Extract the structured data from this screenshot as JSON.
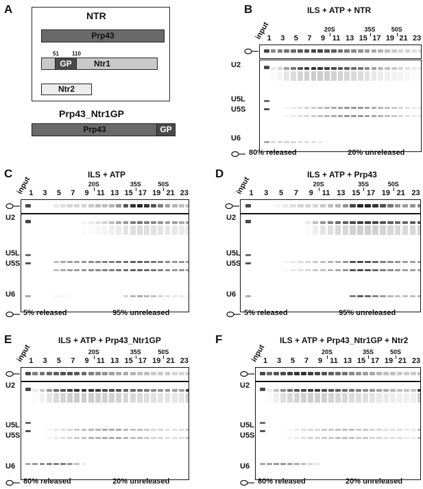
{
  "panels": {
    "A": {
      "letter": "A",
      "box_title": "NTR",
      "prp43": "Prp43",
      "gp": "GP",
      "ntr1": "Ntr1",
      "pos51": "51",
      "pos110": "110",
      "ntr2": "Ntr2",
      "fusion_title": "Prp43_Ntr1GP",
      "fusion_prp43": "Prp43",
      "fusion_gp": "GP"
    },
    "B": {
      "letter": "B",
      "title": "ILS + ATP + NTR",
      "released": "80% released",
      "unreleased": "20% unreleased"
    },
    "C": {
      "letter": "C",
      "title": "ILS + ATP",
      "released": "5% released",
      "unreleased": "95% unreleased"
    },
    "D": {
      "letter": "D",
      "title": "ILS + ATP + Prp43",
      "released": "5% released",
      "unreleased": "95% unreleased"
    },
    "E": {
      "letter": "E",
      "title": "ILS + ATP + Prp43_Ntr1GP",
      "released": "80% released",
      "unreleased": "20% unreleased"
    },
    "F": {
      "letter": "F",
      "title": "ILS + ATP + Prp43_Ntr1GP + Ntr2",
      "released": "80% released",
      "unreleased": "20% unreleased"
    }
  },
  "gel_labels": {
    "input": "input",
    "lanes": [
      "1",
      "3",
      "5",
      "7",
      "9",
      "11",
      "13",
      "15",
      "17",
      "19",
      "21",
      "23"
    ],
    "markers": [
      "20S",
      "35S",
      "50S"
    ],
    "rnas": [
      "U2",
      "U5L",
      "U5S",
      "U6"
    ]
  },
  "band_levels": {
    "B": {
      "top": [
        0.55,
        0.6,
        0.65,
        0.7,
        0.75,
        0.8,
        0.85,
        0.85,
        0.8,
        0.75,
        0.65,
        0.6,
        0.55,
        0.5,
        0.45,
        0.4,
        0.35,
        0.3,
        0.25,
        0.2,
        0.2,
        0.15,
        0.15
      ],
      "u2": [
        0.1,
        0.2,
        0.45,
        0.65,
        0.8,
        0.9,
        0.95,
        0.95,
        0.9,
        0.85,
        0.8,
        0.75,
        0.7,
        0.65,
        0.55,
        0.45,
        0.35,
        0.3,
        0.25,
        0.2,
        0.15,
        0.1,
        0.1
      ],
      "u5": [
        0.0,
        0.0,
        0.05,
        0.1,
        0.15,
        0.2,
        0.25,
        0.3,
        0.35,
        0.4,
        0.45,
        0.5,
        0.5,
        0.5,
        0.45,
        0.4,
        0.35,
        0.3,
        0.25,
        0.2,
        0.15,
        0.1,
        0.1
      ],
      "u6": [
        0.2,
        0.2,
        0.2,
        0.2,
        0.15,
        0.15,
        0.15,
        0.1,
        0,
        0,
        0,
        0,
        0,
        0,
        0,
        0,
        0,
        0,
        0,
        0,
        0,
        0,
        0
      ]
    },
    "C": {
      "top": [
        0,
        0,
        0,
        0.1,
        0.15,
        0.2,
        0.2,
        0.2,
        0.25,
        0.3,
        0.3,
        0.35,
        0.5,
        0.8,
        0.95,
        1.0,
        0.95,
        0.8,
        0.6,
        0.45,
        0.35,
        0.3,
        0.3
      ],
      "u2": [
        0,
        0,
        0,
        0,
        0,
        0,
        0,
        0.05,
        0.1,
        0.15,
        0.2,
        0.3,
        0.4,
        0.5,
        0.6,
        0.65,
        0.6,
        0.55,
        0.5,
        0.45,
        0.45,
        0.4,
        0.45
      ],
      "u5": [
        0,
        0,
        0,
        0.3,
        0.4,
        0.45,
        0.45,
        0.5,
        0.55,
        0.55,
        0.6,
        0.6,
        0.65,
        0.7,
        0.75,
        0.75,
        0.7,
        0.65,
        0.6,
        0.55,
        0.5,
        0.5,
        0.45
      ],
      "u6": [
        0,
        0,
        0,
        0.05,
        0.05,
        0,
        0,
        0,
        0,
        0,
        0,
        0,
        0,
        0.2,
        0.35,
        0.4,
        0.35,
        0.3,
        0.2,
        0.15,
        0.1,
        0.1,
        0.1
      ]
    },
    "D": {
      "top": [
        0,
        0,
        0,
        0.05,
        0.1,
        0.15,
        0.2,
        0.2,
        0.2,
        0.25,
        0.3,
        0.35,
        0.5,
        0.85,
        1.0,
        1.0,
        0.95,
        0.8,
        0.65,
        0.5,
        0.45,
        0.5,
        0.55
      ],
      "u2": [
        0,
        0,
        0,
        0,
        0,
        0,
        0,
        0.1,
        0.3,
        0.5,
        0.6,
        0.7,
        0.75,
        0.85,
        0.9,
        0.9,
        0.85,
        0.8,
        0.75,
        0.7,
        0.7,
        0.75,
        0.8
      ],
      "u5": [
        0,
        0,
        0,
        0,
        0.05,
        0.1,
        0.15,
        0.2,
        0.25,
        0.3,
        0.35,
        0.4,
        0.5,
        0.8,
        0.85,
        0.8,
        0.7,
        0.6,
        0.55,
        0.5,
        0.45,
        0.45,
        0.45
      ],
      "u6": [
        0,
        0,
        0,
        0,
        0,
        0,
        0,
        0,
        0,
        0,
        0,
        0,
        0,
        0.6,
        0.75,
        0.7,
        0.55,
        0.45,
        0.35,
        0.3,
        0.3,
        0.3,
        0.35
      ]
    },
    "E": {
      "top": [
        0.6,
        0.65,
        0.7,
        0.75,
        0.8,
        0.8,
        0.75,
        0.7,
        0.6,
        0.55,
        0.5,
        0.45,
        0.4,
        0.4,
        0.35,
        0.3,
        0.3,
        0.25,
        0.25,
        0.25,
        0.2,
        0.2,
        0.25
      ],
      "u2": [
        0.1,
        0.25,
        0.5,
        0.7,
        0.8,
        0.9,
        0.95,
        0.95,
        0.95,
        0.9,
        0.85,
        0.85,
        0.8,
        0.75,
        0.7,
        0.65,
        0.6,
        0.55,
        0.5,
        0.5,
        0.45,
        0.45,
        0.9
      ],
      "u5": [
        0,
        0,
        0.05,
        0.1,
        0.15,
        0.2,
        0.25,
        0.3,
        0.35,
        0.35,
        0.4,
        0.4,
        0.4,
        0.35,
        0.3,
        0.3,
        0.25,
        0.2,
        0.2,
        0.15,
        0.15,
        0.15,
        0.3
      ],
      "u6": [
        0.5,
        0.55,
        0.6,
        0.6,
        0.6,
        0.5,
        0.3,
        0.1,
        0,
        0,
        0,
        0,
        0,
        0,
        0,
        0,
        0,
        0,
        0,
        0,
        0,
        0,
        0
      ]
    },
    "F": {
      "top": [
        0.7,
        0.8,
        0.85,
        0.9,
        0.95,
        0.95,
        0.9,
        0.85,
        0.8,
        0.75,
        0.7,
        0.65,
        0.55,
        0.5,
        0.45,
        0.4,
        0.35,
        0.3,
        0.3,
        0.25,
        0.25,
        0.25,
        0.3
      ],
      "u2": [
        0.1,
        0.3,
        0.55,
        0.7,
        0.8,
        0.85,
        0.9,
        0.9,
        0.85,
        0.8,
        0.75,
        0.7,
        0.65,
        0.6,
        0.55,
        0.5,
        0.45,
        0.4,
        0.35,
        0.3,
        0.3,
        0.3,
        0.9
      ],
      "u5": [
        0,
        0,
        0,
        0.05,
        0.1,
        0.15,
        0.2,
        0.2,
        0.25,
        0.25,
        0.3,
        0.3,
        0.3,
        0.25,
        0.25,
        0.2,
        0.2,
        0.15,
        0.15,
        0.15,
        0.1,
        0.1,
        0.3
      ],
      "u6": [
        0.45,
        0.5,
        0.5,
        0.45,
        0.4,
        0.3,
        0.2,
        0.1,
        0,
        0,
        0,
        0,
        0,
        0,
        0,
        0,
        0,
        0,
        0,
        0,
        0,
        0,
        0
      ]
    }
  }
}
